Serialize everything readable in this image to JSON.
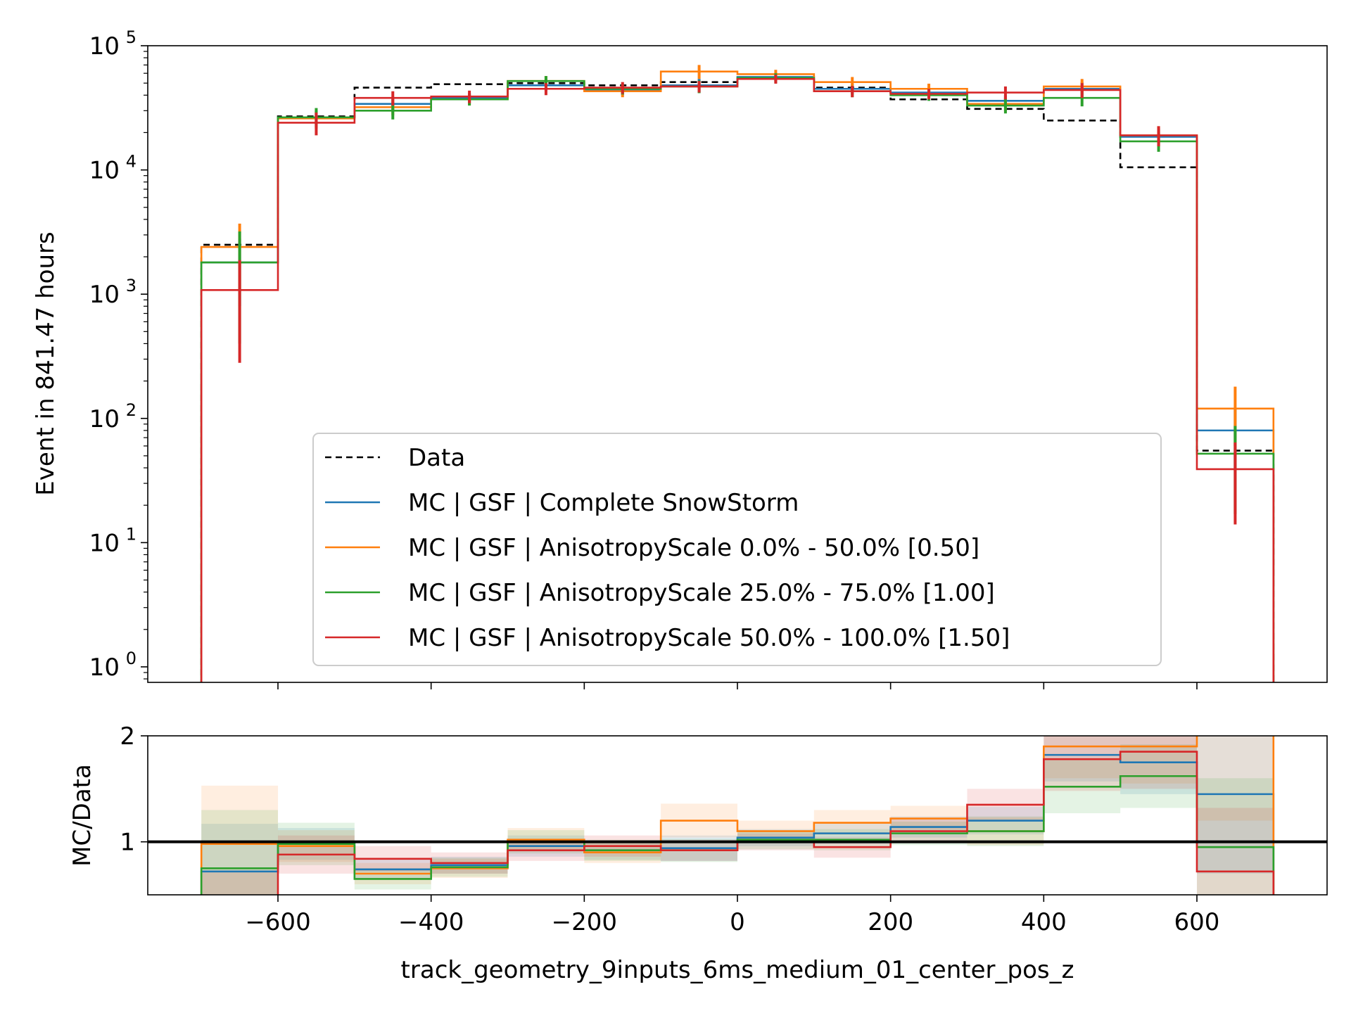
{
  "chart_data": {
    "type": "histogram",
    "bin_edges": [
      -700,
      -600,
      -500,
      -400,
      -300,
      -200,
      -100,
      0,
      100,
      200,
      300,
      400,
      500,
      600,
      700
    ],
    "xlim": [
      -770,
      770
    ],
    "xticks": [
      -600,
      -400,
      -200,
      0,
      200,
      400,
      600
    ],
    "xtick_labels": [
      "−600",
      "−400",
      "−200",
      "0",
      "200",
      "400",
      "600"
    ],
    "xlabel": "track_geometry_9inputs_6ms_medium_01_center_pos_z",
    "main": {
      "ylabel": "Event in 841.47 hours",
      "yscale": "log",
      "ylim": [
        0.75,
        100000
      ],
      "yticks": [
        {
          "base": "10",
          "exp": "0",
          "value": 1
        },
        {
          "base": "10",
          "exp": "1",
          "value": 10
        },
        {
          "base": "10",
          "exp": "2",
          "value": 100
        },
        {
          "base": "10",
          "exp": "3",
          "value": 1000
        },
        {
          "base": "10",
          "exp": "4",
          "value": 10000
        },
        {
          "base": "10",
          "exp": "5",
          "value": 100000
        }
      ]
    },
    "ratio": {
      "ylabel": "MC/Data",
      "ylim": [
        0.5,
        2
      ],
      "yticks": [
        {
          "value": 1,
          "label": "1"
        },
        {
          "value": 2,
          "label": "2"
        }
      ],
      "reference_line": 1
    },
    "legend": {
      "placement": "lower-center"
    },
    "series": [
      {
        "name": "Data",
        "color": "#000000",
        "style": "dashed",
        "values": [
          2500,
          27000,
          46000,
          49000,
          50000,
          48000,
          51000,
          54000,
          46000,
          37000,
          31000,
          25000,
          10500,
          55
        ]
      },
      {
        "name": "MC | GSF | Complete SnowStorm",
        "color": "#1f77b4",
        "style": "solid",
        "values": [
          1800,
          26500,
          34000,
          38000,
          48000,
          44000,
          48000,
          56000,
          45000,
          42000,
          36000,
          45000,
          18500,
          80
        ],
        "errors": [
          1000,
          3500,
          4000,
          3500,
          4500,
          4000,
          6000,
          4500,
          4500,
          3500,
          4000,
          6000,
          3000,
          40
        ],
        "ratio": [
          0.72,
          0.98,
          0.74,
          0.78,
          0.96,
          0.92,
          0.94,
          1.04,
          1.08,
          1.14,
          1.2,
          1.82,
          1.75,
          1.45
        ],
        "ratio_errors": [
          0.45,
          0.15,
          0.1,
          0.08,
          0.1,
          0.09,
          0.12,
          0.08,
          0.1,
          0.1,
          0.13,
          0.25,
          0.3,
          0.75
        ]
      },
      {
        "name": "MC | GSF | AnisotropyScale 0.0% - 50.0% [0.50]",
        "color": "#ff7f0e",
        "style": "solid",
        "values": [
          2400,
          26000,
          32000,
          37000,
          52000,
          43000,
          62000,
          59000,
          51000,
          45000,
          34000,
          47000,
          19000,
          120
        ],
        "errors": [
          1300,
          4000,
          4500,
          4000,
          5000,
          4500,
          8000,
          5000,
          5000,
          4500,
          4500,
          7000,
          3500,
          60
        ],
        "ratio": [
          0.98,
          0.96,
          0.7,
          0.75,
          1.02,
          0.9,
          1.2,
          1.1,
          1.18,
          1.22,
          1.1,
          1.9,
          1.9,
          2.2
        ],
        "ratio_errors": [
          0.55,
          0.15,
          0.1,
          0.09,
          0.11,
          0.1,
          0.16,
          0.1,
          0.12,
          0.12,
          0.13,
          0.3,
          0.35,
          1.0
        ]
      },
      {
        "name": "MC | GSF | AnisotropyScale 25.0% - 75.0% [1.00]",
        "color": "#2ca02c",
        "style": "solid",
        "values": [
          1800,
          26500,
          30000,
          37000,
          52000,
          45000,
          47000,
          55000,
          43000,
          40000,
          33000,
          38000,
          17000,
          52
        ],
        "errors": [
          1400,
          5000,
          4500,
          4000,
          5000,
          4500,
          5500,
          5000,
          4500,
          4000,
          4500,
          5500,
          3000,
          35
        ],
        "ratio": [
          0.75,
          0.98,
          0.65,
          0.76,
          1.0,
          0.92,
          0.92,
          1.02,
          1.02,
          1.08,
          1.1,
          1.52,
          1.62,
          0.95
        ],
        "ratio_errors": [
          0.55,
          0.2,
          0.1,
          0.09,
          0.11,
          0.1,
          0.11,
          0.09,
          0.1,
          0.11,
          0.14,
          0.25,
          0.3,
          0.65
        ]
      },
      {
        "name": "MC | GSF | AnisotropyScale 50.0% - 100.0% [1.50]",
        "color": "#d62728",
        "style": "solid",
        "values": [
          1080,
          24000,
          38000,
          39000,
          45000,
          46000,
          47000,
          54000,
          43000,
          41000,
          42000,
          44000,
          19000,
          39
        ],
        "errors": [
          800,
          5000,
          5000,
          4500,
          5000,
          5000,
          5000,
          4500,
          4500,
          4000,
          5000,
          6000,
          3500,
          25
        ],
        "ratio": [
          0.43,
          0.88,
          0.84,
          0.8,
          0.92,
          0.96,
          0.92,
          1.0,
          0.95,
          1.1,
          1.35,
          1.78,
          1.85,
          0.72
        ],
        "ratio_errors": [
          0.3,
          0.18,
          0.12,
          0.1,
          0.1,
          0.1,
          0.1,
          0.08,
          0.1,
          0.11,
          0.15,
          0.3,
          0.35,
          0.6
        ]
      }
    ]
  }
}
